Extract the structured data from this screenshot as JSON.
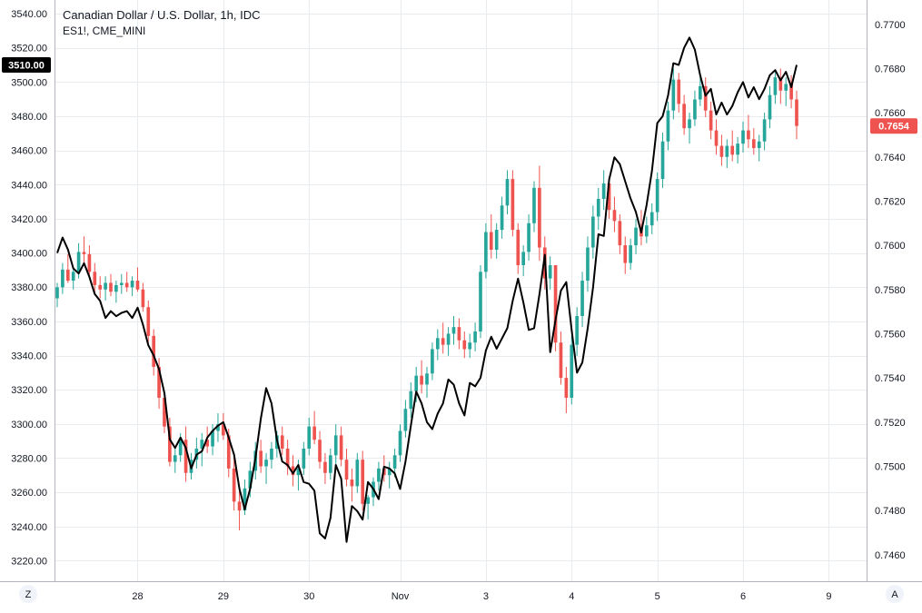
{
  "legend": {
    "title": "Canadian Dollar / U.S. Dollar, 1h, IDC",
    "overlay": "ES1!, CME_MINI"
  },
  "corner_buttons": {
    "left": "Z",
    "right": "A"
  },
  "colors": {
    "up": "#26a69a",
    "down": "#ef5350",
    "overlay_line": "#000000",
    "grid": "#e9ecef",
    "axis_text": "#131722",
    "left_badge_bg": "#000000",
    "right_badge_bg": "#ef5350"
  },
  "chart_data": {
    "type": "line",
    "title": "Canadian Dollar / U.S. Dollar, 1h, IDC",
    "x_axis": {
      "ticks": [
        "28",
        "29",
        "30",
        "Nov",
        "3",
        "4",
        "5",
        "6",
        "9"
      ]
    },
    "left_axis": {
      "name": "ES1!, CME_MINI",
      "range": [
        3208,
        3548
      ],
      "ticks": [
        "3540.00",
        "3520.00",
        "3500.00",
        "3480.00",
        "3460.00",
        "3440.00",
        "3420.00",
        "3400.00",
        "3380.00",
        "3360.00",
        "3340.00",
        "3320.00",
        "3300.00",
        "3280.00",
        "3260.00",
        "3240.00",
        "3220.00"
      ],
      "last_value_label": "3510.00",
      "last_value": 3510
    },
    "right_axis": {
      "name": "Canadian Dollar / U.S. Dollar",
      "range": [
        0.7448,
        0.7711
      ],
      "ticks": [
        "0.7700",
        "0.7680",
        "0.7660",
        "0.7640",
        "0.7620",
        "0.7600",
        "0.7580",
        "0.7560",
        "0.7540",
        "0.7520",
        "0.7500",
        "0.7480",
        "0.7460"
      ],
      "last_value_label": "0.7654",
      "last_value": 0.7654
    },
    "grid": true,
    "series": [
      {
        "name": "Canadian Dollar / U.S. Dollar",
        "kind": "candlestick",
        "axis": "right",
        "candles_ohlc": [
          [
            0.7576,
            0.7583,
            0.7572,
            0.7581
          ],
          [
            0.7581,
            0.7592,
            0.7578,
            0.7589
          ],
          [
            0.7589,
            0.7596,
            0.7583,
            0.7584
          ],
          [
            0.7584,
            0.759,
            0.758,
            0.7588
          ],
          [
            0.7588,
            0.7601,
            0.7585,
            0.7597
          ],
          [
            0.7597,
            0.7604,
            0.7592,
            0.7596
          ],
          [
            0.7596,
            0.76,
            0.7586,
            0.7588
          ],
          [
            0.7588,
            0.7592,
            0.7578,
            0.7582
          ],
          [
            0.7582,
            0.7586,
            0.7576,
            0.758
          ],
          [
            0.758,
            0.7586,
            0.7575,
            0.7583
          ],
          [
            0.7583,
            0.7587,
            0.7577,
            0.7579
          ],
          [
            0.7579,
            0.7584,
            0.7574,
            0.7582
          ],
          [
            0.7582,
            0.7587,
            0.7578,
            0.7583
          ],
          [
            0.7583,
            0.7588,
            0.7579,
            0.7581
          ],
          [
            0.7581,
            0.7586,
            0.7577,
            0.7584
          ],
          [
            0.7584,
            0.759,
            0.7579,
            0.758
          ],
          [
            0.758,
            0.7583,
            0.757,
            0.7572
          ],
          [
            0.7572,
            0.7575,
            0.7556,
            0.7559
          ],
          [
            0.7559,
            0.7562,
            0.7541,
            0.7545
          ],
          [
            0.7545,
            0.7549,
            0.7526,
            0.7531
          ],
          [
            0.7531,
            0.7534,
            0.7515,
            0.7518
          ],
          [
            0.7518,
            0.7522,
            0.75,
            0.7502
          ],
          [
            0.7502,
            0.7508,
            0.7497,
            0.7505
          ],
          [
            0.7505,
            0.7515,
            0.7502,
            0.7512
          ],
          [
            0.7512,
            0.7518,
            0.7493,
            0.7497
          ],
          [
            0.7497,
            0.7506,
            0.7494,
            0.7503
          ],
          [
            0.7503,
            0.7513,
            0.7499,
            0.7508
          ],
          [
            0.7508,
            0.7515,
            0.75,
            0.7512
          ],
          [
            0.7512,
            0.7518,
            0.7506,
            0.7509
          ],
          [
            0.7509,
            0.7519,
            0.7505,
            0.7516
          ],
          [
            0.7516,
            0.7524,
            0.7511,
            0.7519
          ],
          [
            0.7519,
            0.7524,
            0.7512,
            0.7514
          ],
          [
            0.7514,
            0.7517,
            0.7495,
            0.7499
          ],
          [
            0.7499,
            0.7504,
            0.748,
            0.7484
          ],
          [
            0.7484,
            0.7489,
            0.7471,
            0.748
          ],
          [
            0.748,
            0.7494,
            0.7478,
            0.749
          ],
          [
            0.749,
            0.7502,
            0.7486,
            0.7498
          ],
          [
            0.7498,
            0.7511,
            0.7494,
            0.7507
          ],
          [
            0.7507,
            0.7512,
            0.7497,
            0.75
          ],
          [
            0.75,
            0.7506,
            0.7492,
            0.7503
          ],
          [
            0.7503,
            0.7511,
            0.7499,
            0.7508
          ],
          [
            0.7508,
            0.7516,
            0.7504,
            0.7514
          ],
          [
            0.7514,
            0.7518,
            0.7505,
            0.7508
          ],
          [
            0.7508,
            0.7512,
            0.7496,
            0.75
          ],
          [
            0.75,
            0.7505,
            0.7491,
            0.7496
          ],
          [
            0.7496,
            0.7503,
            0.7489,
            0.7499
          ],
          [
            0.7499,
            0.7511,
            0.7496,
            0.7508
          ],
          [
            0.7508,
            0.7522,
            0.7505,
            0.7518
          ],
          [
            0.7518,
            0.7525,
            0.751,
            0.7512
          ],
          [
            0.7512,
            0.7516,
            0.7499,
            0.7502
          ],
          [
            0.7502,
            0.7506,
            0.7492,
            0.7497
          ],
          [
            0.7497,
            0.7508,
            0.7494,
            0.7505
          ],
          [
            0.7505,
            0.7519,
            0.7501,
            0.7514
          ],
          [
            0.7514,
            0.7518,
            0.75,
            0.7503
          ],
          [
            0.7503,
            0.7508,
            0.7491,
            0.7494
          ],
          [
            0.7494,
            0.7499,
            0.7484,
            0.7491
          ],
          [
            0.7491,
            0.7506,
            0.7488,
            0.7503
          ],
          [
            0.7503,
            0.7507,
            0.748,
            0.7483
          ],
          [
            0.7483,
            0.7487,
            0.7476,
            0.7486
          ],
          [
            0.7486,
            0.7495,
            0.7482,
            0.7493
          ],
          [
            0.7493,
            0.7502,
            0.7489,
            0.7499
          ],
          [
            0.7499,
            0.7505,
            0.7493,
            0.7496
          ],
          [
            0.7496,
            0.7502,
            0.749,
            0.7499
          ],
          [
            0.7499,
            0.7508,
            0.7495,
            0.7505
          ],
          [
            0.7505,
            0.7519,
            0.7502,
            0.7516
          ],
          [
            0.7516,
            0.753,
            0.7513,
            0.7526
          ],
          [
            0.7526,
            0.7538,
            0.7522,
            0.7534
          ],
          [
            0.7534,
            0.7545,
            0.7529,
            0.7541
          ],
          [
            0.7541,
            0.7548,
            0.7533,
            0.7537
          ],
          [
            0.7537,
            0.7545,
            0.7531,
            0.7542
          ],
          [
            0.7542,
            0.7556,
            0.7539,
            0.7553
          ],
          [
            0.7553,
            0.7562,
            0.7548,
            0.7558
          ],
          [
            0.7558,
            0.7565,
            0.7551,
            0.7555
          ],
          [
            0.7555,
            0.7563,
            0.755,
            0.756
          ],
          [
            0.756,
            0.7568,
            0.7555,
            0.7563
          ],
          [
            0.7563,
            0.7567,
            0.7553,
            0.7557
          ],
          [
            0.7557,
            0.7561,
            0.7549,
            0.7553
          ],
          [
            0.7553,
            0.756,
            0.7549,
            0.7556
          ],
          [
            0.7556,
            0.7565,
            0.7552,
            0.7561
          ],
          [
            0.7561,
            0.7591,
            0.7558,
            0.7588
          ],
          [
            0.7588,
            0.761,
            0.7585,
            0.7606
          ],
          [
            0.7606,
            0.7614,
            0.7594,
            0.7598
          ],
          [
            0.7598,
            0.761,
            0.7594,
            0.7607
          ],
          [
            0.7607,
            0.7622,
            0.7603,
            0.7618
          ],
          [
            0.7618,
            0.7634,
            0.7614,
            0.763
          ],
          [
            0.763,
            0.7634,
            0.7604,
            0.7607
          ],
          [
            0.7607,
            0.761,
            0.7587,
            0.7591
          ],
          [
            0.7591,
            0.76,
            0.7586,
            0.7597
          ],
          [
            0.7597,
            0.7614,
            0.7593,
            0.761
          ],
          [
            0.761,
            0.7629,
            0.7606,
            0.7626
          ],
          [
            0.7626,
            0.7636,
            0.7593,
            0.7599
          ],
          [
            0.7599,
            0.7604,
            0.758,
            0.7585
          ],
          [
            0.7585,
            0.7595,
            0.758,
            0.7591
          ],
          [
            0.7591,
            0.7577,
            0.7552,
            0.7556
          ],
          [
            0.7556,
            0.7561,
            0.7537,
            0.754
          ],
          [
            0.754,
            0.7545,
            0.7524,
            0.7531
          ],
          [
            0.7531,
            0.7559,
            0.7528,
            0.7555
          ],
          [
            0.7555,
            0.7572,
            0.755,
            0.7568
          ],
          [
            0.7568,
            0.7588,
            0.7563,
            0.7584
          ],
          [
            0.7584,
            0.7604,
            0.7579,
            0.7599
          ],
          [
            0.7599,
            0.7618,
            0.7594,
            0.7613
          ],
          [
            0.7613,
            0.7626,
            0.7607,
            0.7621
          ],
          [
            0.7621,
            0.7634,
            0.7616,
            0.7628
          ],
          [
            0.7628,
            0.7631,
            0.7612,
            0.7616
          ],
          [
            0.7616,
            0.7622,
            0.7606,
            0.7611
          ],
          [
            0.7611,
            0.7614,
            0.7596,
            0.76
          ],
          [
            0.76,
            0.7604,
            0.7587,
            0.7592
          ],
          [
            0.7592,
            0.7603,
            0.7589,
            0.76
          ],
          [
            0.76,
            0.7612,
            0.7596,
            0.7608
          ],
          [
            0.7608,
            0.7616,
            0.76,
            0.7604
          ],
          [
            0.7604,
            0.7613,
            0.7601,
            0.7609
          ],
          [
            0.7609,
            0.7619,
            0.7605,
            0.7615
          ],
          [
            0.7615,
            0.7633,
            0.7611,
            0.763
          ],
          [
            0.763,
            0.7651,
            0.7626,
            0.7647
          ],
          [
            0.7647,
            0.7665,
            0.7643,
            0.7661
          ],
          [
            0.7661,
            0.768,
            0.7657,
            0.7675
          ],
          [
            0.7675,
            0.7678,
            0.766,
            0.7664
          ],
          [
            0.7664,
            0.7668,
            0.765,
            0.7653
          ],
          [
            0.7653,
            0.766,
            0.7646,
            0.7657
          ],
          [
            0.7657,
            0.767,
            0.7654,
            0.7666
          ],
          [
            0.7666,
            0.7678,
            0.7663,
            0.7672
          ],
          [
            0.7672,
            0.7676,
            0.7658,
            0.7661
          ],
          [
            0.7661,
            0.7665,
            0.7648,
            0.7652
          ],
          [
            0.7652,
            0.7657,
            0.7641,
            0.7645
          ],
          [
            0.7645,
            0.765,
            0.7636,
            0.764
          ],
          [
            0.764,
            0.7648,
            0.7635,
            0.7645
          ],
          [
            0.7645,
            0.7652,
            0.7638,
            0.7641
          ],
          [
            0.7641,
            0.7649,
            0.7637,
            0.7646
          ],
          [
            0.7646,
            0.7656,
            0.7642,
            0.7652
          ],
          [
            0.7652,
            0.7659,
            0.7644,
            0.7648
          ],
          [
            0.7648,
            0.7653,
            0.7641,
            0.7644
          ],
          [
            0.7644,
            0.765,
            0.7638,
            0.7647
          ],
          [
            0.7647,
            0.766,
            0.7643,
            0.7657
          ],
          [
            0.7657,
            0.7672,
            0.7653,
            0.7668
          ],
          [
            0.7668,
            0.7679,
            0.7664,
            0.7676
          ],
          [
            0.7676,
            0.768,
            0.7664,
            0.767
          ],
          [
            0.767,
            0.7676,
            0.7663,
            0.7673
          ],
          [
            0.7673,
            0.7677,
            0.7662,
            0.7666
          ],
          [
            0.7666,
            0.767,
            0.7648,
            0.7654
          ]
        ]
      },
      {
        "name": "ES1!, CME_MINI",
        "kind": "line",
        "axis": "left",
        "values": [
          3400,
          3409,
          3402,
          3391,
          3388,
          3394,
          3386,
          3376,
          3372,
          3362,
          3366,
          3363,
          3365,
          3366,
          3362,
          3368,
          3358,
          3346,
          3340,
          3332,
          3318,
          3291,
          3286,
          3292,
          3286,
          3274,
          3282,
          3284,
          3292,
          3296,
          3299,
          3301,
          3292,
          3282,
          3262,
          3250,
          3262,
          3280,
          3303,
          3321,
          3312,
          3291,
          3278,
          3276,
          3271,
          3276,
          3266,
          3265,
          3261,
          3236,
          3233,
          3245,
          3276,
          3268,
          3231,
          3252,
          3249,
          3244,
          3266,
          3262,
          3256,
          3275,
          3274,
          3271,
          3262,
          3278,
          3299,
          3319,
          3312,
          3301,
          3297,
          3306,
          3312,
          3326,
          3323,
          3312,
          3305,
          3324,
          3322,
          3327,
          3343,
          3351,
          3344,
          3350,
          3356,
          3372,
          3385,
          3371,
          3355,
          3356,
          3376,
          3399,
          3342,
          3361,
          3378,
          3383,
          3355,
          3330,
          3336,
          3356,
          3380,
          3411,
          3410,
          3443,
          3456,
          3452,
          3442,
          3432,
          3424,
          3412,
          3428,
          3448,
          3476,
          3480,
          3492,
          3511,
          3510,
          3520,
          3526,
          3519,
          3504,
          3492,
          3496,
          3481,
          3488,
          3481,
          3486,
          3494,
          3500,
          3491,
          3497,
          3490,
          3496,
          3504,
          3507,
          3501,
          3506,
          3497,
          3510
        ]
      }
    ]
  }
}
